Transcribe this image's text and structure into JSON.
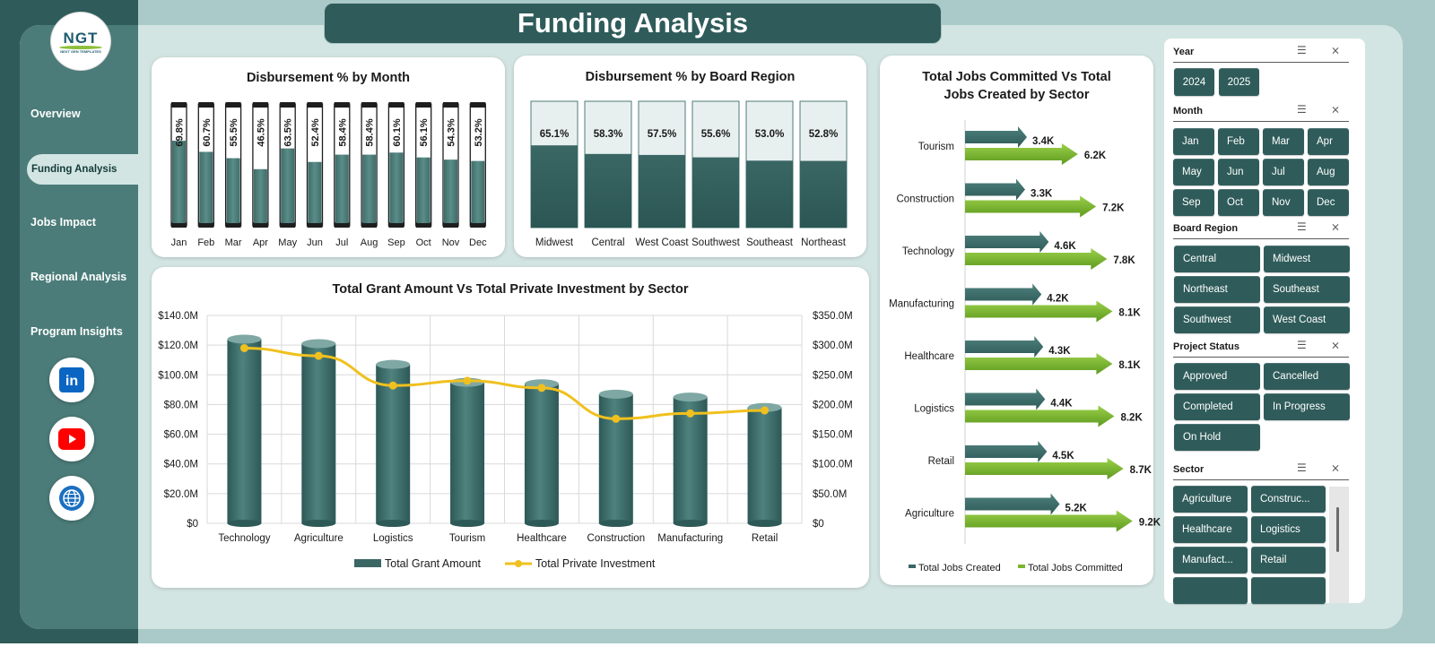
{
  "header": {
    "title": "Funding Analysis"
  },
  "logo": {
    "text": "NGT",
    "subtext": "NEXT GEN TEMPLATES"
  },
  "sidebar": {
    "items": [
      {
        "label": "Overview"
      },
      {
        "label": "Funding Analysis",
        "active": true
      },
      {
        "label": "Jobs Impact"
      },
      {
        "label": "Regional Analysis"
      },
      {
        "label": "Program Insights"
      }
    ],
    "social": [
      {
        "icon": "linkedin-icon",
        "glyph": "in",
        "color": "#0a66c2"
      },
      {
        "icon": "youtube-icon",
        "glyph": "▶",
        "color": "#ff0000"
      },
      {
        "icon": "globe-icon",
        "glyph": "",
        "color": "#1b6fc0"
      }
    ]
  },
  "colors": {
    "dark_teal": "#2f5c5a",
    "bar_fill": "#4b7c79",
    "gold_line": "#f0c01e",
    "green_arrow": "#7ab52e"
  },
  "charts": {
    "month": {
      "title": "Disbursement  % by Month",
      "chart_data": {
        "type": "bar",
        "categories": [
          "Jan",
          "Feb",
          "Mar",
          "Apr",
          "May",
          "Jun",
          "Jul",
          "Aug",
          "Sep",
          "Oct",
          "Nov",
          "Dec"
        ],
        "values": [
          69.8,
          60.7,
          55.5,
          46.5,
          63.5,
          52.4,
          58.4,
          58.4,
          60.1,
          56.1,
          54.3,
          53.2
        ],
        "labels": [
          "69.8%",
          "60.7%",
          "55.5%",
          "46.5%",
          "63.5%",
          "52.4%",
          "58.4%",
          "58.4%",
          "60.1%",
          "56.1%",
          "54.3%",
          "53.2%"
        ],
        "ylim": [
          0,
          100
        ]
      }
    },
    "region": {
      "title": "Disbursement  % by Board Region",
      "chart_data": {
        "type": "bar",
        "categories": [
          "Midwest",
          "Central",
          "West Coast",
          "Southwest",
          "Southeast",
          "Northeast"
        ],
        "values": [
          65.1,
          58.3,
          57.5,
          55.6,
          53.0,
          52.8
        ],
        "labels": [
          "65.1%",
          "58.3%",
          "57.5%",
          "55.6%",
          "53.0%",
          "52.8%"
        ],
        "ylim": [
          0,
          100
        ]
      }
    },
    "grant": {
      "title": "Total Grant Amount Vs Total Private Investment by Sector",
      "chart_data": {
        "type": "bar",
        "categories": [
          "Technology",
          "Agriculture",
          "Logistics",
          "Tourism",
          "Healthcare",
          "Construction",
          "Manufacturing",
          "Retail"
        ],
        "series": [
          {
            "name": "Total Grant Amount",
            "axis": "left",
            "values": [
              124,
              121,
              107,
              95,
              94,
              87,
              85,
              78
            ]
          },
          {
            "name": "Total Private Investment",
            "axis": "right",
            "values": [
              295,
              282,
              232,
              240,
              228,
              176,
              185,
              190
            ]
          }
        ],
        "left_ticks": [
          "$0",
          "$20.0M",
          "$40.0M",
          "$60.0M",
          "$80.0M",
          "$100.0M",
          "$120.0M",
          "$140.0M"
        ],
        "right_ticks": [
          "$0",
          "$50.0M",
          "$100.0M",
          "$150.0M",
          "$200.0M",
          "$250.0M",
          "$300.0M",
          "$350.0M"
        ],
        "ylim_left": [
          0,
          140
        ],
        "ylim_right": [
          0,
          350
        ]
      }
    },
    "jobs": {
      "title_line1": "Total Jobs Committed Vs Total",
      "title_line2": "Jobs Created by Sector",
      "chart_data": {
        "type": "bar",
        "categories": [
          "Tourism",
          "Construction",
          "Technology",
          "Manufacturing",
          "Healthcare",
          "Logistics",
          "Retail",
          "Agriculture"
        ],
        "series": [
          {
            "name": "Total Jobs Created",
            "values": [
              3.4,
              3.3,
              4.6,
              4.2,
              4.3,
              4.4,
              4.5,
              5.2
            ],
            "labels": [
              "3.4K",
              "3.3K",
              "4.6K",
              "4.2K",
              "4.3K",
              "4.4K",
              "4.5K",
              "5.2K"
            ]
          },
          {
            "name": "Total Jobs Committed",
            "values": [
              6.2,
              7.2,
              7.8,
              8.1,
              8.1,
              8.2,
              8.7,
              9.2
            ],
            "labels": [
              "6.2K",
              "7.2K",
              "7.8K",
              "8.1K",
              "8.1K",
              "8.2K",
              "8.7K",
              "9.2K"
            ]
          }
        ]
      }
    }
  },
  "slicers": {
    "year": {
      "title": "Year",
      "items": [
        "2024",
        "2025"
      ]
    },
    "month": {
      "title": "Month",
      "items": [
        "Jan",
        "Feb",
        "Mar",
        "Apr",
        "May",
        "Jun",
        "Jul",
        "Aug",
        "Sep",
        "Oct",
        "Nov",
        "Dec"
      ]
    },
    "region": {
      "title": "Board Region",
      "items": [
        "Central",
        "Midwest",
        "Northeast",
        "Southeast",
        "Southwest",
        "West Coast"
      ]
    },
    "status": {
      "title": "Project Status",
      "items": [
        "Approved",
        "Cancelled",
        "Completed",
        "In Progress",
        "On Hold"
      ]
    },
    "sector": {
      "title": "Sector",
      "items": [
        "Agriculture",
        "Construc...",
        "Healthcare",
        "Logistics",
        "Manufact...",
        "Retail"
      ]
    }
  }
}
